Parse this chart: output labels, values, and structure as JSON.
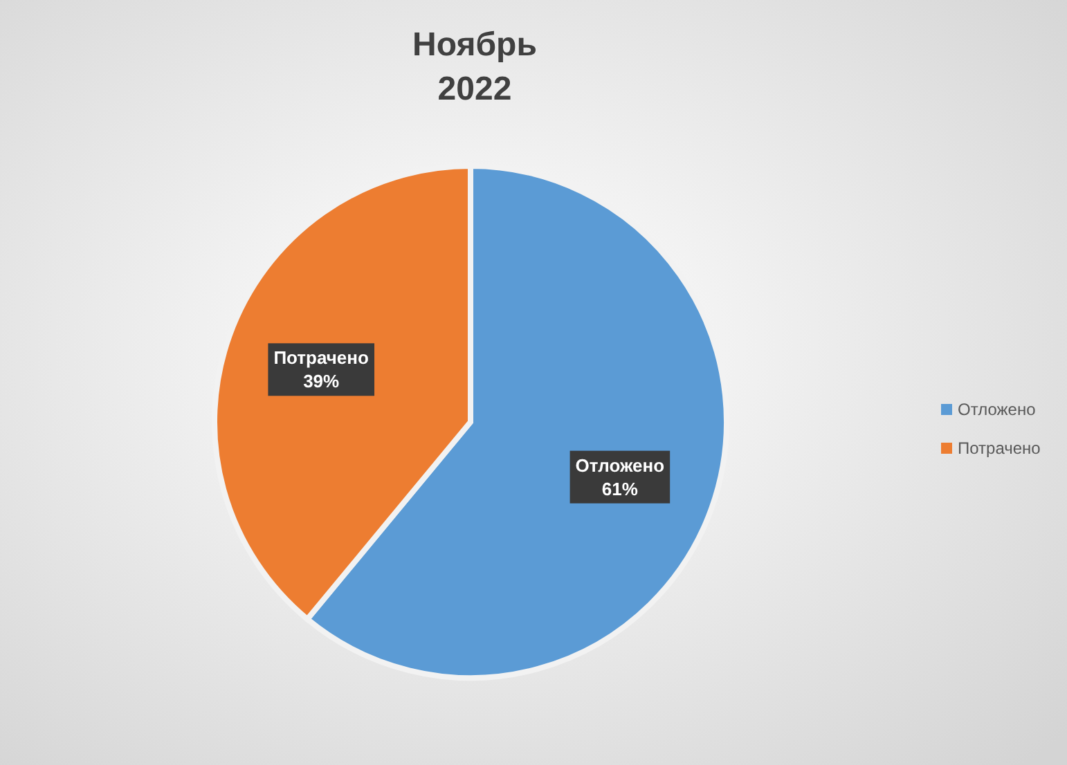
{
  "chart_data": {
    "type": "pie",
    "title": "Ноябрь",
    "subtitle": "2022",
    "categories": [
      "Отложено",
      "Потрачено"
    ],
    "values": [
      61,
      39
    ],
    "colors": [
      "#5b9bd5",
      "#ed7d31"
    ],
    "value_labels": [
      "61%",
      "39%"
    ],
    "legend": "right"
  }
}
